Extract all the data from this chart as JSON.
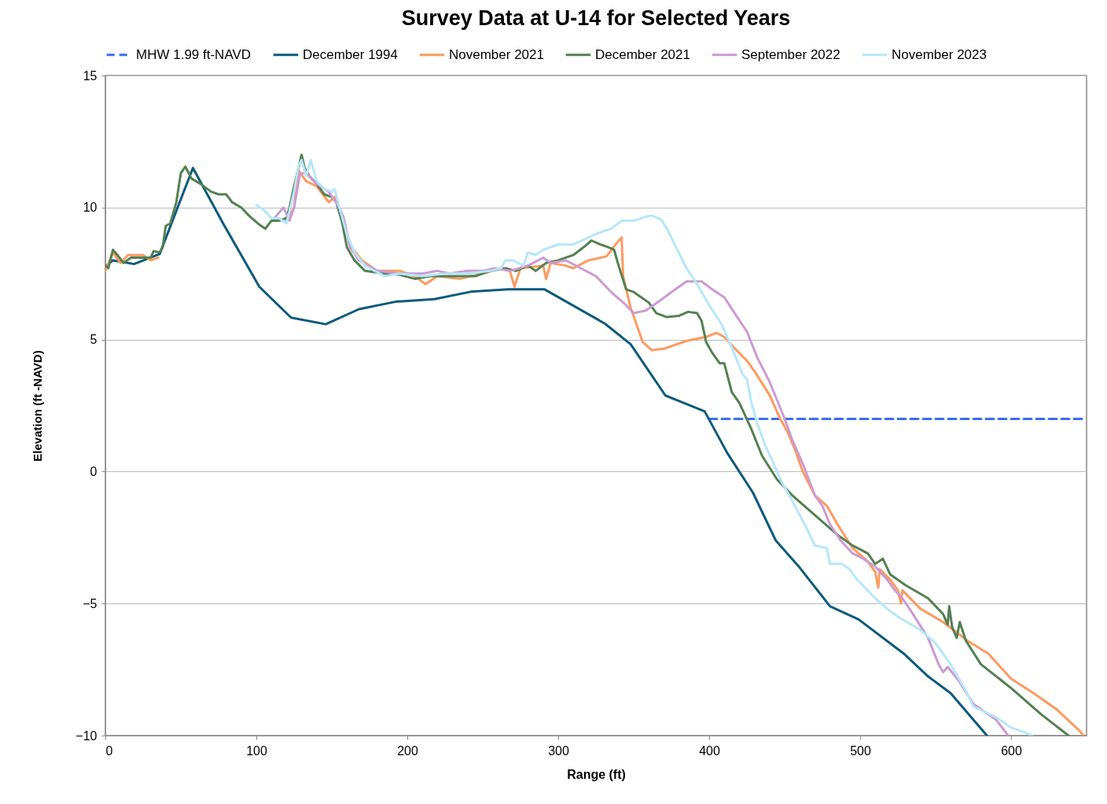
{
  "chart_data": {
    "type": "line",
    "title": "Survey Data at U-14 for Selected Years",
    "xlabel": "Range (ft)",
    "ylabel": "Elevation (ft -NAVD)",
    "xlim": [
      0,
      650
    ],
    "xticks": [
      0,
      100,
      200,
      300,
      400,
      500,
      600
    ],
    "ylim": [
      -10,
      15
    ],
    "yticks": [
      -10,
      -5,
      0,
      5,
      10,
      15
    ],
    "grid": "y",
    "legend": "top",
    "series": [
      {
        "name": "MHW 1.99 ft-NAVD",
        "color": "#3c6cf0",
        "line_style": "dashed",
        "x": [
          400,
          650
        ],
        "values": [
          1.99,
          1.99
        ]
      },
      {
        "name": "December 1994",
        "color": "#0b5a7c",
        "x": [
          0,
          5,
          19,
          36,
          58,
          78,
          102,
          123,
          146,
          168,
          192,
          218,
          242,
          267,
          291,
          331,
          348,
          371,
          397,
          412,
          429,
          444,
          460,
          480,
          499,
          529,
          545,
          560,
          584
        ],
        "values": [
          7.76,
          8.0,
          7.86,
          8.24,
          11.5,
          9.4,
          7.0,
          5.83,
          5.58,
          6.15,
          6.43,
          6.53,
          6.81,
          6.9,
          6.9,
          5.6,
          4.82,
          2.88,
          2.28,
          0.7,
          -0.8,
          -2.6,
          -3.64,
          -5.1,
          -5.6,
          -6.9,
          -7.76,
          -8.4,
          -10
        ]
      },
      {
        "name": "November 2021",
        "color": "#ff9a5e",
        "x": [
          0,
          5,
          10,
          15,
          25,
          30,
          35,
          80,
          120,
          125,
          128,
          133,
          140,
          148,
          152,
          157,
          163,
          170,
          180,
          195,
          205,
          212,
          220,
          235,
          250,
          262,
          268,
          271,
          275,
          290,
          292,
          295,
          305,
          310,
          320,
          332,
          338,
          342,
          343,
          348,
          356,
          362,
          370,
          385,
          398,
          405,
          410,
          418,
          425,
          430,
          440,
          447,
          452,
          457,
          462,
          470,
          478,
          485,
          495,
          505,
          510,
          512,
          513,
          520,
          525,
          527,
          528,
          540,
          555,
          571,
          585,
          600,
          615,
          630,
          645,
          648
        ],
        "values": [
          7.6,
          8.3,
          7.9,
          8.2,
          8.2,
          8.0,
          8.1,
          null,
          9.5,
          10.0,
          11.4,
          11.0,
          10.8,
          10.2,
          10.4,
          9.6,
          8.5,
          8.0,
          7.6,
          7.6,
          7.4,
          7.1,
          7.4,
          7.3,
          7.5,
          7.7,
          7.6,
          7.0,
          7.7,
          7.8,
          7.3,
          7.9,
          7.8,
          7.7,
          8.0,
          8.15,
          8.6,
          8.87,
          7.4,
          6.2,
          4.9,
          4.6,
          4.65,
          4.95,
          5.1,
          5.25,
          5.1,
          4.6,
          4.2,
          3.8,
          2.9,
          2.0,
          1.5,
          0.8,
          0,
          -0.9,
          -1.3,
          -2.0,
          -2.9,
          -3.4,
          -3.8,
          -4.4,
          -3.7,
          -4.1,
          -4.5,
          -5.0,
          -4.5,
          -5.2,
          -5.7,
          -6.4,
          -6.9,
          -7.85,
          -8.4,
          -9.0,
          -9.8,
          -10
        ]
      },
      {
        "name": "December 2021",
        "color": "#548052",
        "x": [
          0,
          2,
          5,
          8,
          12,
          17,
          25,
          30,
          32,
          36,
          38,
          40,
          43,
          47,
          50,
          53,
          57,
          63,
          70,
          75,
          80,
          84,
          90,
          95,
          102,
          106,
          110,
          115,
          120,
          122,
          125,
          130,
          132,
          135,
          140,
          145,
          150,
          153,
          157,
          160,
          165,
          172,
          185,
          195,
          205,
          215,
          230,
          245,
          255,
          265,
          272,
          280,
          285,
          292,
          300,
          310,
          318,
          322,
          328,
          333,
          337,
          340,
          345,
          350,
          355,
          360,
          365,
          372,
          380,
          386,
          392,
          395,
          398,
          402,
          407,
          410,
          415,
          420,
          428,
          435,
          445,
          455,
          465,
          475,
          485,
          495,
          505,
          510,
          515,
          520,
          530,
          545,
          555,
          558,
          559,
          561,
          564,
          566,
          570,
          580,
          600,
          620,
          638
        ],
        "values": [
          7.8,
          7.7,
          8.4,
          8.2,
          7.9,
          8.1,
          8.1,
          8.1,
          8.35,
          8.3,
          8.5,
          9.3,
          9.4,
          10.2,
          11.3,
          11.55,
          11.1,
          10.9,
          10.6,
          10.5,
          10.5,
          10.2,
          10.0,
          9.7,
          9.35,
          9.2,
          9.5,
          9.5,
          9.6,
          10.0,
          10.8,
          12.0,
          11.5,
          11.2,
          10.9,
          10.5,
          10.4,
          10.2,
          9.4,
          8.5,
          8.0,
          7.6,
          7.5,
          7.45,
          7.3,
          7.4,
          7.4,
          7.4,
          7.6,
          7.7,
          7.6,
          7.8,
          7.6,
          7.9,
          8.0,
          8.2,
          8.55,
          8.75,
          8.6,
          8.5,
          8.4,
          7.8,
          6.9,
          6.8,
          6.6,
          6.4,
          6.0,
          5.85,
          5.9,
          6.05,
          6.0,
          5.7,
          4.9,
          4.5,
          4.1,
          4.1,
          3.0,
          2.6,
          1.6,
          0.6,
          -0.3,
          -0.9,
          -1.4,
          -1.9,
          -2.4,
          -2.8,
          -3.1,
          -3.5,
          -3.3,
          -3.9,
          -4.3,
          -4.8,
          -5.4,
          -5.8,
          -5.1,
          -5.9,
          -6.3,
          -5.7,
          -6.4,
          -7.3,
          -8.2,
          -9.2,
          -10
        ]
      },
      {
        "name": "September 2022",
        "color": "#cc9ad2",
        "x": [
          112,
          115,
          118,
          122,
          125,
          129,
          133,
          140,
          148,
          155,
          158,
          162,
          168,
          180,
          195,
          210,
          220,
          228,
          240,
          250,
          258,
          268,
          280,
          290,
          295,
          305,
          315,
          325,
          335,
          345,
          350,
          358,
          368,
          375,
          385,
          395,
          402,
          410,
          418,
          425,
          432,
          440,
          445,
          450,
          455,
          462,
          470,
          475,
          480,
          487,
          495,
          502,
          510,
          518,
          523,
          528,
          535,
          545,
          552,
          555,
          558,
          565,
          575,
          590,
          598
        ],
        "values": [
          9.6,
          9.8,
          10.0,
          9.5,
          10.0,
          11.3,
          11.3,
          10.9,
          10.6,
          10.0,
          9.6,
          8.5,
          8.0,
          7.6,
          7.5,
          7.5,
          7.6,
          7.5,
          7.6,
          7.6,
          7.7,
          7.6,
          7.8,
          8.1,
          7.9,
          8.0,
          7.7,
          7.4,
          6.8,
          6.3,
          6.0,
          6.1,
          6.5,
          6.8,
          7.2,
          7.2,
          6.9,
          6.6,
          5.9,
          5.3,
          4.3,
          3.4,
          2.7,
          2.0,
          1.2,
          0.3,
          -0.9,
          -1.3,
          -2.0,
          -2.6,
          -3.1,
          -3.3,
          -3.6,
          -4.1,
          -4.5,
          -4.8,
          -5.4,
          -6.3,
          -7.3,
          -7.6,
          -7.4,
          -7.9,
          -8.8,
          -9.4,
          -10
        ]
      },
      {
        "name": "November 2023",
        "color": "#b6e6fa",
        "x": [
          100,
          105,
          110,
          115,
          120,
          125,
          128,
          130,
          133,
          136,
          140,
          145,
          150,
          152,
          155,
          160,
          165,
          172,
          185,
          195,
          210,
          225,
          240,
          255,
          262,
          265,
          270,
          277,
          280,
          285,
          290,
          300,
          310,
          325,
          335,
          342,
          350,
          358,
          362,
          368,
          372,
          378,
          385,
          392,
          400,
          408,
          415,
          422,
          425,
          428,
          432,
          437,
          442,
          448,
          455,
          465,
          470,
          478,
          480,
          488,
          493,
          498,
          505,
          510,
          518,
          525,
          540,
          550,
          560,
          570,
          575,
          590,
          600,
          610,
          614
        ],
        "values": [
          10.1,
          9.9,
          9.6,
          9.6,
          9.4,
          10.6,
          11.6,
          11.8,
          11.2,
          11.8,
          11.0,
          10.7,
          10.6,
          10.7,
          10.0,
          9.0,
          8.3,
          7.8,
          7.4,
          7.5,
          7.4,
          7.5,
          7.5,
          7.6,
          7.7,
          8.0,
          8.0,
          7.8,
          8.3,
          8.2,
          8.4,
          8.6,
          8.6,
          9.0,
          9.2,
          9.5,
          9.5,
          9.65,
          9.7,
          9.55,
          9.2,
          8.5,
          7.7,
          7.1,
          6.3,
          5.6,
          4.7,
          3.7,
          3.5,
          2.6,
          1.8,
          1.0,
          0.4,
          -0.4,
          -1.1,
          -2.2,
          -2.8,
          -2.9,
          -3.5,
          -3.5,
          -3.7,
          -4.1,
          -4.5,
          -4.8,
          -5.2,
          -5.5,
          -6.0,
          -6.5,
          -7.3,
          -8.3,
          -8.9,
          -9.3,
          -9.7,
          -9.9,
          -10
        ]
      }
    ]
  }
}
